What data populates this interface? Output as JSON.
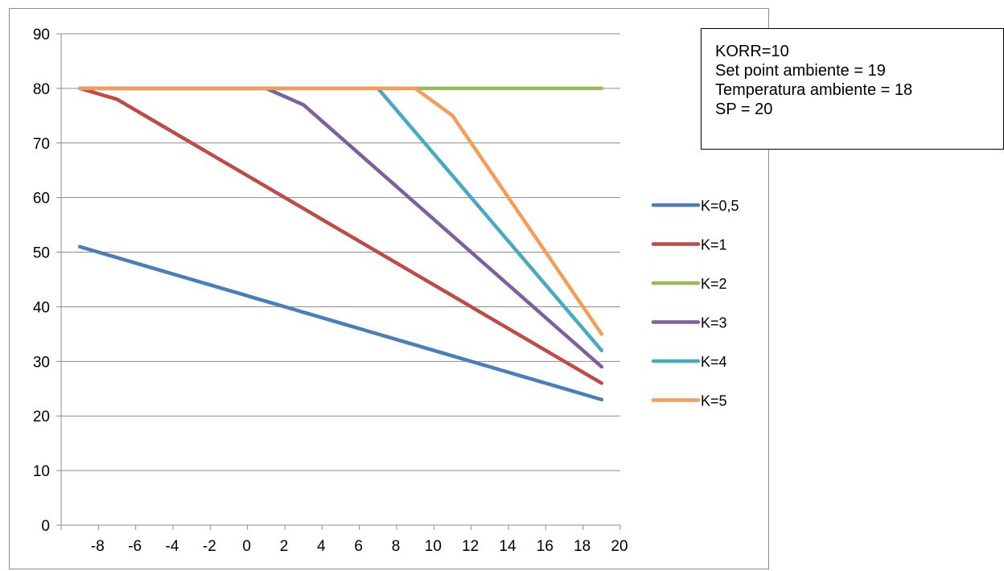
{
  "chart_data": {
    "type": "line",
    "title": "",
    "xlabel": "",
    "ylabel": "",
    "categories": [
      "-8",
      "-6",
      "-4",
      "-2",
      "0",
      "2",
      "4",
      "6",
      "8",
      "10",
      "12",
      "14",
      "16",
      "18",
      "20"
    ],
    "x": [
      -9,
      -7,
      -5,
      -3,
      -1,
      1,
      3,
      5,
      7,
      9,
      11,
      13,
      15,
      17,
      19
    ],
    "ylim": [
      0,
      90
    ],
    "y_ticks": [
      "0",
      "10",
      "20",
      "30",
      "40",
      "50",
      "60",
      "70",
      "80",
      "90"
    ],
    "grid": "horizontal",
    "legend_position": "right",
    "series": [
      {
        "name": "K=0,5",
        "color": "#4a7ebb",
        "values": [
          51,
          49,
          47,
          45,
          43,
          41,
          39,
          37,
          35,
          33,
          31,
          29,
          27,
          25,
          23
        ]
      },
      {
        "name": "K=1",
        "color": "#be4b48",
        "values": [
          80,
          78,
          74,
          70,
          66,
          62,
          58,
          54,
          50,
          46,
          42,
          38,
          34,
          30,
          26
        ]
      },
      {
        "name": "K=2",
        "color": "#98b954",
        "values": [
          80,
          80,
          80,
          80,
          80,
          80,
          80,
          80,
          80,
          80,
          80,
          80,
          80,
          80,
          80
        ]
      },
      {
        "name": "K=3",
        "color": "#7d60a0",
        "values": [
          80,
          80,
          80,
          80,
          80,
          80,
          77,
          71,
          65,
          59,
          53,
          47,
          41,
          35,
          29
        ]
      },
      {
        "name": "K=4",
        "color": "#46aac5",
        "values": [
          80,
          80,
          80,
          80,
          80,
          80,
          80,
          80,
          80,
          72,
          64,
          56,
          48,
          40,
          32
        ]
      },
      {
        "name": "K=5",
        "color": "#f59d56",
        "values": [
          80,
          80,
          80,
          80,
          80,
          80,
          80,
          80,
          80,
          80,
          75,
          65,
          55,
          45,
          35
        ]
      }
    ]
  },
  "info_box": {
    "lines": [
      "KORR=10",
      "Set point ambiente = 19",
      "Temperatura ambiente = 18",
      "SP = 20"
    ]
  },
  "colors": {
    "grid": "#8c8c8c",
    "axis": "#8c8c8c",
    "frame": "#8c8c8c"
  }
}
